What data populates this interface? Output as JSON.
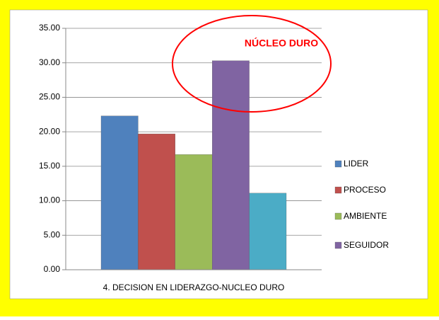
{
  "chart_data": {
    "type": "bar",
    "categories": [
      "4. DECISION EN LIDERAZGO-NUCLEO DURO"
    ],
    "series": [
      {
        "name": "LIDER",
        "color": "#4f81bd",
        "values": [
          22.3
        ]
      },
      {
        "name": "PROCESO",
        "color": "#c0504d",
        "values": [
          19.7
        ]
      },
      {
        "name": "AMBIENTE",
        "color": "#9bbb59",
        "values": [
          16.7
        ]
      },
      {
        "name": "SEGUIDOR",
        "color": "#8064a2",
        "values": [
          30.3
        ]
      },
      {
        "color": "#4bacc6",
        "values": [
          11.1
        ]
      }
    ],
    "ylim": [
      0,
      35
    ],
    "yticks": [
      {
        "value": 0,
        "label": "0.00"
      },
      {
        "value": 5,
        "label": "5.00"
      },
      {
        "value": 10,
        "label": "10.00"
      },
      {
        "value": 15,
        "label": "15.00"
      },
      {
        "value": 20,
        "label": "20.00"
      },
      {
        "value": 25,
        "label": "25.00"
      },
      {
        "value": 30,
        "label": "30.00"
      },
      {
        "value": 35,
        "label": "35.00"
      }
    ],
    "grid": true,
    "legend": "right",
    "annotations": [
      {
        "text": "NÚCLEO DURO",
        "color": "#ff0000"
      }
    ]
  }
}
